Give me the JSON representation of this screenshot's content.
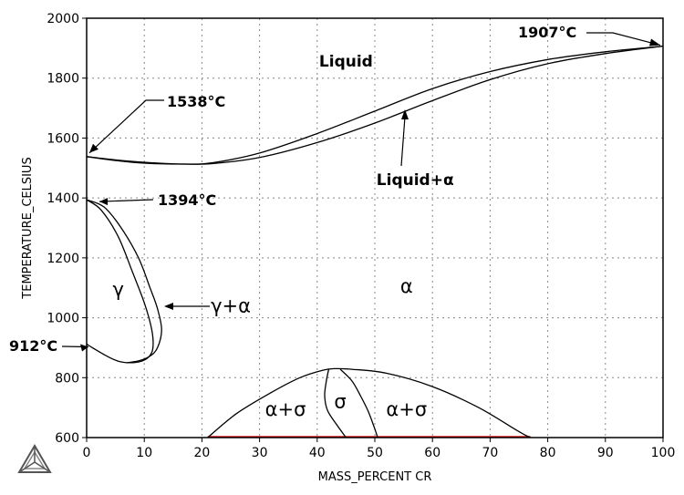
{
  "chart_data": {
    "type": "line",
    "xlabel": "MASS_PERCENT CR",
    "ylabel": "TEMPERATURE_CELSIUS",
    "xlim": [
      0,
      100
    ],
    "ylim": [
      600,
      2000
    ],
    "xticks": [
      0,
      10,
      20,
      30,
      40,
      50,
      60,
      70,
      80,
      90,
      100
    ],
    "yticks": [
      600,
      800,
      1000,
      1200,
      1400,
      1600,
      1800,
      2000
    ],
    "grid": true,
    "series": [
      {
        "x": [
          0,
          5,
          10,
          17,
          22,
          30,
          40,
          50,
          60,
          70,
          80,
          90,
          100
        ],
        "y": [
          1538,
          1527,
          1519,
          1513,
          1518,
          1550,
          1615,
          1690,
          1765,
          1822,
          1862,
          1888,
          1907
        ]
      },
      {
        "x": [
          0,
          5,
          10,
          17,
          22,
          30,
          40,
          50,
          60,
          70,
          80,
          90,
          100
        ],
        "y": [
          1538,
          1525,
          1516,
          1513,
          1515,
          1535,
          1585,
          1650,
          1725,
          1795,
          1848,
          1882,
          1907
        ]
      },
      {
        "x": [
          0,
          3,
          6,
          9,
          11,
          12.3,
          13,
          12.3,
          11,
          9,
          7
        ],
        "y": [
          1394,
          1370,
          1300,
          1200,
          1100,
          1030,
          960,
          900,
          872,
          856,
          850
        ]
      },
      {
        "x": [
          0,
          2.5,
          5.5,
          8,
          10,
          11.3,
          11.5,
          10.8,
          9.5,
          7.5,
          5.5,
          3.5,
          1,
          0
        ],
        "y": [
          1394,
          1360,
          1270,
          1150,
          1050,
          960,
          900,
          870,
          855,
          850,
          855,
          872,
          900,
          912
        ]
      },
      {
        "x": [
          21,
          26,
          32,
          37,
          41,
          43,
          46,
          52,
          60,
          68,
          75,
          77
        ],
        "y": [
          600,
          680,
          750,
          800,
          825,
          830,
          828,
          815,
          770,
          700,
          620,
          600
        ]
      },
      {
        "x": [
          42,
          41.6,
          41.3,
          41.8,
          43.5,
          45
        ],
        "y": [
          828,
          790,
          740,
          690,
          640,
          600
        ]
      },
      {
        "x": [
          44,
          46,
          47.5,
          48.8,
          49.8,
          50.5
        ],
        "y": [
          828,
          790,
          740,
          690,
          640,
          600
        ]
      }
    ],
    "labels": [
      {
        "text": "Liquid",
        "x": 45,
        "y": 1860
      },
      {
        "text": "Liquid+α",
        "x": 57,
        "y": 1465
      },
      {
        "text": "γ",
        "x": 5.5,
        "y": 1095
      },
      {
        "text": "γ+α",
        "x": 25,
        "y": 1040
      },
      {
        "text": "α",
        "x": 55.5,
        "y": 1105
      },
      {
        "text": "α+σ",
        "x": 34.5,
        "y": 695
      },
      {
        "text": "σ",
        "x": 44,
        "y": 720
      },
      {
        "text": "α+σ",
        "x": 55.5,
        "y": 695
      }
    ],
    "annotations": [
      {
        "text": "1538°C",
        "x": 0,
        "y": 1538
      },
      {
        "text": "1394°C",
        "x": 0,
        "y": 1394
      },
      {
        "text": "912°C",
        "x": 0,
        "y": 912
      },
      {
        "text": "1907°C",
        "x": 100,
        "y": 1907
      }
    ]
  }
}
